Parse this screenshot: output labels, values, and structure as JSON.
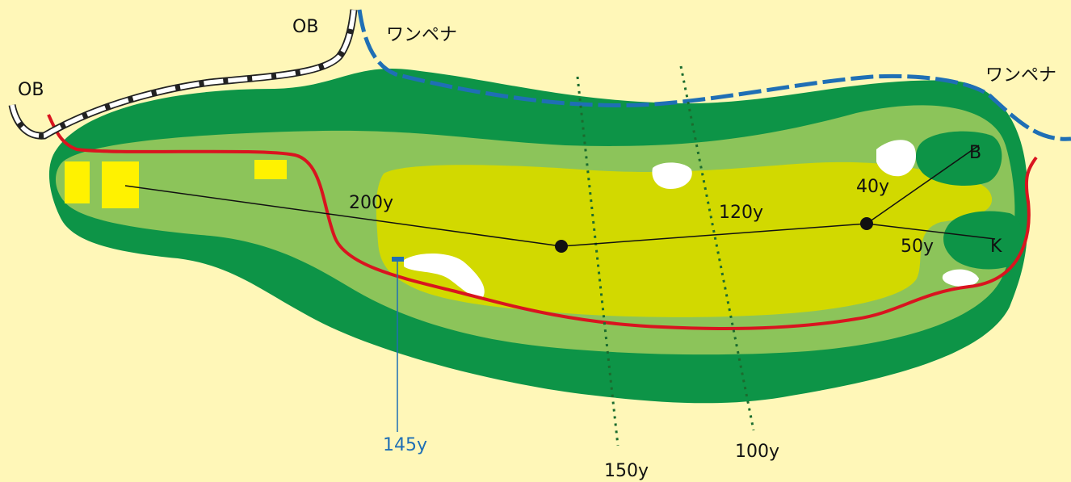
{
  "colors": {
    "background": "#fff7b8",
    "rough": "#0d9447",
    "semi_rough": "#8cc45a",
    "fairway": "#d2d900",
    "green": "#0d9447",
    "bunker": "#ffffff",
    "tee": "#fff200",
    "ob_line": "#ffffff",
    "penalty_line": "#1f6fb5",
    "red_line": "#d9141f",
    "yard_line": "#1b6b2e",
    "marker": "#1f6fb5"
  },
  "labels": {
    "ob_left": "OB",
    "ob_top": "OB",
    "penalty_top": "ワンペナ",
    "penalty_right": "ワンペナ",
    "dist_200": "200y",
    "dist_120": "120y",
    "dist_40": "40y",
    "dist_50": "50y",
    "green_b": "B",
    "green_k": "K",
    "marker_145": "145y",
    "line_150": "150y",
    "line_100": "100y"
  }
}
